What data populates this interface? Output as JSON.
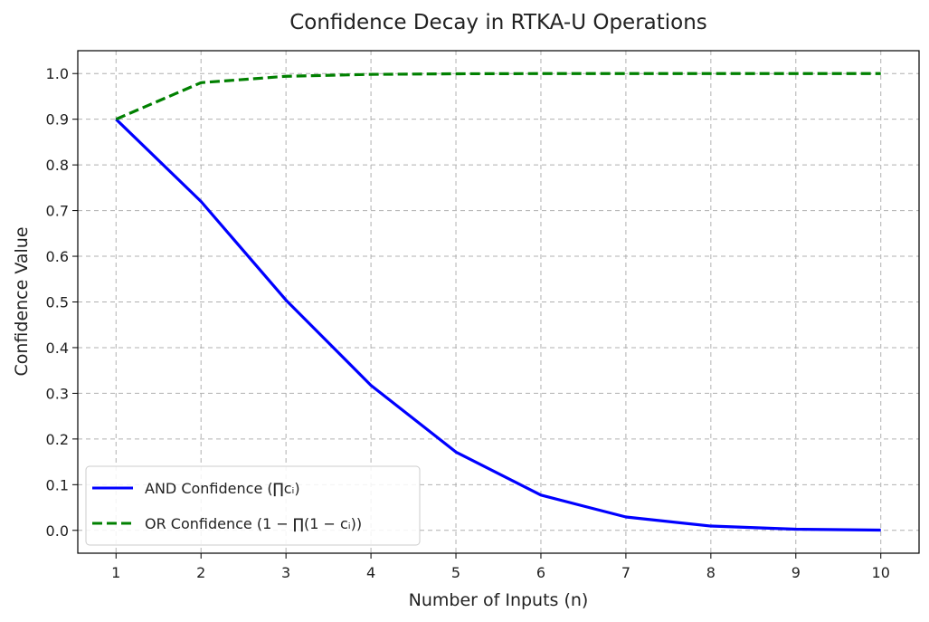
{
  "chart_data": {
    "type": "line",
    "title": "Confidence Decay in RTKA-U Operations",
    "xlabel": "Number of Inputs (n)",
    "ylabel": "Confidence Value",
    "x": [
      1,
      2,
      3,
      4,
      5,
      6,
      7,
      8,
      9,
      10
    ],
    "xlim": [
      0.55,
      10.45
    ],
    "ylim": [
      -0.05,
      1.05
    ],
    "xticks": [
      "1",
      "2",
      "3",
      "4",
      "5",
      "6",
      "7",
      "8",
      "9",
      "10"
    ],
    "yticks": [
      "0.0",
      "0.1",
      "0.2",
      "0.3",
      "0.4",
      "0.5",
      "0.6",
      "0.7",
      "0.8",
      "0.9",
      "1.0"
    ],
    "grid": true,
    "legend_position": "lower-left",
    "series": [
      {
        "name": "AND Confidence (∏cᵢ)",
        "color": "#0000ff",
        "style": "solid",
        "values": [
          0.9,
          0.72,
          0.504,
          0.3175,
          0.1714,
          0.0772,
          0.0293,
          0.0094,
          0.0025,
          0.0006
        ]
      },
      {
        "name": "OR Confidence (1 − ∏(1 − cᵢ))",
        "color": "#008000",
        "style": "dashed",
        "values": [
          0.9,
          0.98,
          0.994,
          0.9982,
          0.9995,
          0.9999,
          1.0,
          1.0,
          1.0,
          1.0
        ]
      }
    ]
  }
}
